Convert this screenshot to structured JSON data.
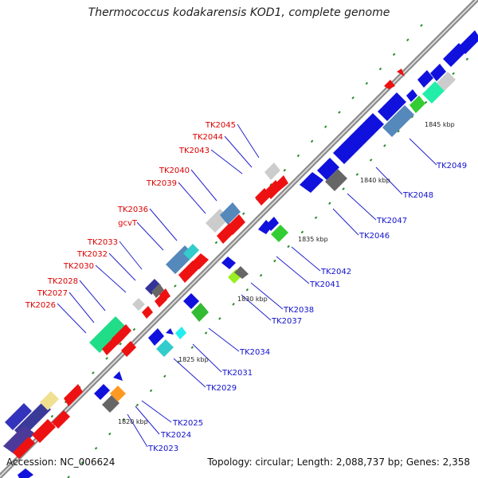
{
  "title": "Thermococcus kodakarensis KOD1, complete genome",
  "footer": {
    "accession": "Accession: NC_006624",
    "summary": "Topology: circular; Length: 2,088,737 bp; Genes: 2,358"
  },
  "scale_marks": [
    "1820 kbp",
    "1825 kbp",
    "1830 kbp",
    "1835 kbp",
    "1840 kbp",
    "1845 kbp"
  ],
  "colors": {
    "forward_gene": "#ee1111",
    "reverse_gene": "#1111dd",
    "label_forward": "#dd0000",
    "label_reverse": "#1010cc",
    "backbone": "#999999"
  },
  "genes_top": [
    {
      "id": "g1",
      "label": "TK2026"
    },
    {
      "id": "g2",
      "label": "TK2027"
    },
    {
      "id": "g3",
      "label": "TK2028"
    },
    {
      "id": "g4",
      "label": "TK2030"
    },
    {
      "id": "g5",
      "label": "TK2032"
    },
    {
      "id": "g6",
      "label": "TK2033"
    },
    {
      "id": "g7",
      "label": "gcvT"
    },
    {
      "id": "g8",
      "label": "TK2036"
    },
    {
      "id": "g9",
      "label": "TK2039"
    },
    {
      "id": "g10",
      "label": "TK2040"
    },
    {
      "id": "g11",
      "label": "TK2043"
    },
    {
      "id": "g12",
      "label": "TK2044"
    },
    {
      "id": "g13",
      "label": "TK2045"
    }
  ],
  "genes_bottom": [
    {
      "id": "b1",
      "label": "TK2023"
    },
    {
      "id": "b2",
      "label": "TK2024"
    },
    {
      "id": "b3",
      "label": "TK2025"
    },
    {
      "id": "b4",
      "label": "TK2029"
    },
    {
      "id": "b5",
      "label": "TK2031"
    },
    {
      "id": "b6",
      "label": "TK2034"
    },
    {
      "id": "b7",
      "label": "TK2037"
    },
    {
      "id": "b8",
      "label": "TK2038"
    },
    {
      "id": "b9",
      "label": "TK2041"
    },
    {
      "id": "b10",
      "label": "TK2042"
    },
    {
      "id": "b11",
      "label": "TK2046"
    },
    {
      "id": "b12",
      "label": "TK2047"
    },
    {
      "id": "b13",
      "label": "TK2048"
    },
    {
      "id": "b14",
      "label": "TK2049"
    }
  ]
}
